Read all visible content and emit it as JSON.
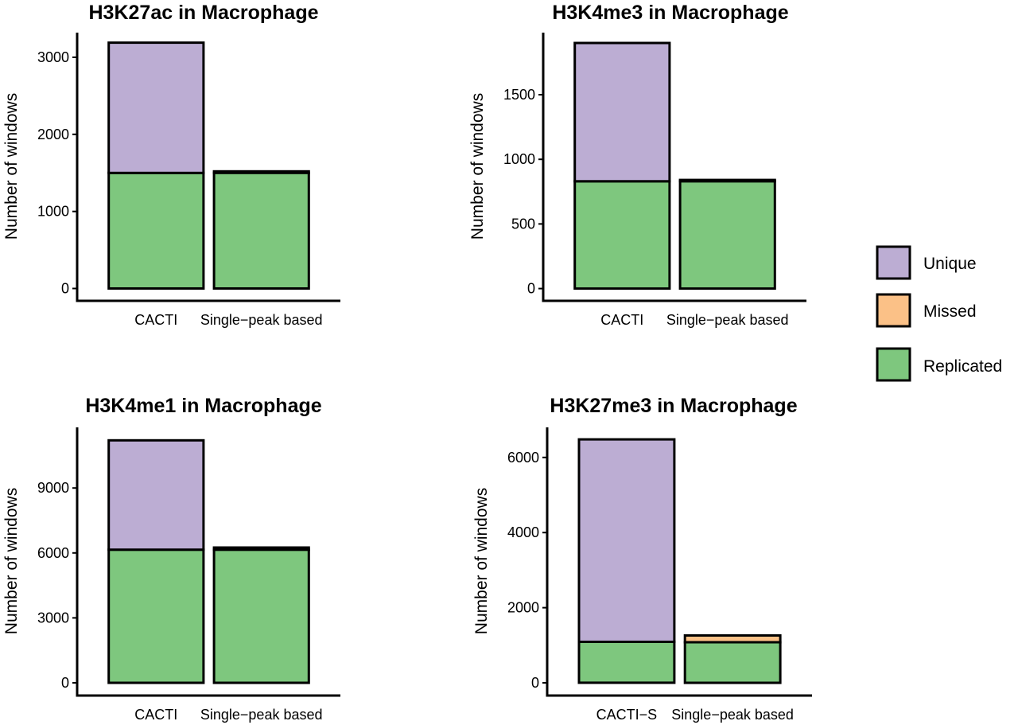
{
  "legend": {
    "items": [
      {
        "label": "Unique",
        "key": "unique"
      },
      {
        "label": "Missed",
        "key": "missed"
      },
      {
        "label": "Replicated",
        "key": "replicated"
      }
    ]
  },
  "colors": {
    "unique": "#bcadd3",
    "missed": "#fbc187",
    "replicated": "#7ec77e"
  },
  "chart_data": [
    {
      "type": "bar",
      "stacked": true,
      "title": "H3K27ac in Macrophage",
      "xlabel": "",
      "ylabel": "Number of windows",
      "ylim": [
        -160,
        3320
      ],
      "yticks": [
        0,
        1000,
        2000,
        3000
      ],
      "categories": [
        "CACTI",
        "Single−peak based"
      ],
      "series": [
        {
          "name": "Replicated",
          "key": "replicated",
          "values": [
            1500,
            1500
          ]
        },
        {
          "name": "Missed",
          "key": "missed",
          "values": [
            0,
            20
          ]
        },
        {
          "name": "Unique",
          "key": "unique",
          "values": [
            1690,
            0
          ]
        }
      ]
    },
    {
      "type": "bar",
      "stacked": true,
      "title": "H3K4me3 in Macrophage",
      "xlabel": "",
      "ylabel": "Number of windows",
      "ylim": [
        -95,
        1980
      ],
      "yticks": [
        0,
        500,
        1000,
        1500
      ],
      "categories": [
        "CACTI",
        "Single−peak based"
      ],
      "series": [
        {
          "name": "Replicated",
          "key": "replicated",
          "values": [
            830,
            830
          ]
        },
        {
          "name": "Missed",
          "key": "missed",
          "values": [
            0,
            10
          ]
        },
        {
          "name": "Unique",
          "key": "unique",
          "values": [
            1070,
            0
          ]
        }
      ]
    },
    {
      "type": "bar",
      "stacked": true,
      "title": "H3K4me1 in Macrophage",
      "xlabel": "",
      "ylabel": "Number of windows",
      "ylim": [
        -590,
        11800
      ],
      "yticks": [
        0,
        3000,
        6000,
        9000
      ],
      "categories": [
        "CACTI",
        "Single−peak based"
      ],
      "series": [
        {
          "name": "Replicated",
          "key": "replicated",
          "values": [
            6150,
            6150
          ]
        },
        {
          "name": "Missed",
          "key": "missed",
          "values": [
            0,
            100
          ]
        },
        {
          "name": "Unique",
          "key": "unique",
          "values": [
            5050,
            0
          ]
        }
      ]
    },
    {
      "type": "bar",
      "stacked": true,
      "title": "H3K27me3 in Macrophage",
      "xlabel": "",
      "ylabel": "Number of windows",
      "ylim": [
        -340,
        6800
      ],
      "yticks": [
        0,
        2000,
        4000,
        6000
      ],
      "categories": [
        "CACTI−S",
        "Single−peak based"
      ],
      "series": [
        {
          "name": "Replicated",
          "key": "replicated",
          "values": [
            1090,
            1080
          ]
        },
        {
          "name": "Missed",
          "key": "missed",
          "values": [
            0,
            180
          ]
        },
        {
          "name": "Unique",
          "key": "unique",
          "values": [
            5390,
            0
          ]
        }
      ]
    }
  ]
}
